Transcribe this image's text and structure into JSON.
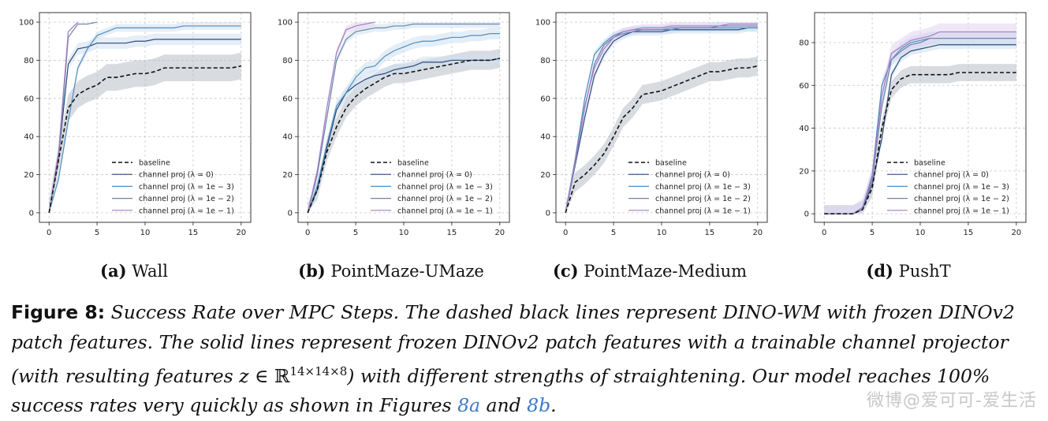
{
  "colors": {
    "baseline": "#111111",
    "lam0": "#2b4a7a",
    "lam3": "#4f8fc0",
    "lam2": "#6d86a8",
    "lam1": "#a37bc4",
    "band_baseline": "#b8bec6",
    "band_light": "#cfe0f0",
    "band_purple": "#e2d4ee",
    "grid": "#c8c8c8"
  },
  "chart_data": [
    {
      "type": "line",
      "id": "wall",
      "sub_label": "(a)",
      "sub_title": "Wall",
      "xlim": [
        -1,
        21
      ],
      "ylim": [
        -5,
        105
      ],
      "xticks": [
        0,
        5,
        10,
        15,
        20
      ],
      "yticks": [
        0,
        20,
        40,
        60,
        80,
        100
      ],
      "grid": true,
      "legend_position": "lower-right",
      "series": [
        {
          "name": "baseline",
          "style": "dashed",
          "color": "baseline",
          "band": 7,
          "x": [
            0,
            1,
            2,
            3,
            4,
            5,
            6,
            7,
            8,
            9,
            10,
            11,
            12,
            13,
            14,
            15,
            16,
            17,
            18,
            19,
            20
          ],
          "y": [
            0,
            28,
            55,
            62,
            65,
            67,
            71,
            71,
            72,
            73,
            73,
            74,
            76,
            76,
            76,
            76,
            76,
            76,
            76,
            76,
            77
          ]
        },
        {
          "name": "channel proj (λ = 0)",
          "style": "solid",
          "color": "lam0",
          "band": 3,
          "x": [
            0,
            1,
            2,
            3,
            4,
            5,
            6,
            7,
            8,
            9,
            10,
            11,
            12,
            13,
            14,
            15,
            16,
            17,
            18,
            19,
            20
          ],
          "y": [
            0,
            30,
            78,
            86,
            87,
            89,
            89,
            89,
            89,
            90,
            90,
            91,
            91,
            91,
            91,
            91,
            91,
            91,
            91,
            91,
            91
          ]
        },
        {
          "name": "channel proj (λ = 1e − 3)",
          "style": "solid",
          "color": "lam3",
          "band": 2,
          "x": [
            0,
            1,
            2,
            3,
            4,
            5,
            6,
            7,
            8,
            9,
            10,
            11,
            12,
            13,
            14,
            15,
            16,
            17,
            18,
            19,
            20
          ],
          "y": [
            0,
            18,
            48,
            76,
            86,
            93,
            95,
            97,
            97,
            97,
            97,
            97,
            97,
            97,
            98,
            98,
            98,
            98,
            98,
            98,
            98
          ]
        },
        {
          "name": "channel proj (λ = 1e − 2)",
          "style": "solid",
          "color": "lam2",
          "band": 0,
          "x": [
            0,
            1,
            2,
            3,
            4,
            5
          ],
          "y": [
            0,
            28,
            92,
            99,
            99,
            100
          ]
        },
        {
          "name": "channel proj (λ = 1e − 1)",
          "style": "solid",
          "color": "lam1",
          "band": 0,
          "x": [
            0,
            1,
            2,
            3
          ],
          "y": [
            0,
            32,
            95,
            100
          ]
        }
      ]
    },
    {
      "type": "line",
      "id": "umaze",
      "sub_label": "(b)",
      "sub_title": "PointMaze-UMaze",
      "xlim": [
        -1,
        21
      ],
      "ylim": [
        -5,
        105
      ],
      "xticks": [
        0,
        5,
        10,
        15,
        20
      ],
      "yticks": [
        0,
        20,
        40,
        60,
        80,
        100
      ],
      "grid": true,
      "legend_position": "lower-right",
      "series": [
        {
          "name": "baseline",
          "style": "dashed",
          "color": "baseline",
          "band": 5,
          "x": [
            0,
            1,
            2,
            3,
            4,
            5,
            6,
            7,
            8,
            9,
            10,
            11,
            12,
            13,
            14,
            15,
            16,
            17,
            18,
            19,
            20
          ],
          "y": [
            0,
            12,
            32,
            45,
            55,
            61,
            65,
            68,
            71,
            73,
            73,
            74,
            75,
            76,
            77,
            78,
            79,
            80,
            80,
            80,
            81
          ]
        },
        {
          "name": "channel proj (λ = 0)",
          "style": "solid",
          "color": "lam0",
          "band": 3,
          "x": [
            0,
            1,
            2,
            3,
            4,
            5,
            6,
            7,
            8,
            9,
            10,
            11,
            12,
            13,
            14,
            15,
            16,
            17,
            18,
            19,
            20
          ],
          "y": [
            0,
            12,
            34,
            54,
            63,
            67,
            70,
            72,
            73,
            75,
            76,
            77,
            79,
            79,
            79,
            80,
            80,
            80,
            80,
            80,
            81
          ]
        },
        {
          "name": "channel proj (λ = 1e − 3)",
          "style": "solid",
          "color": "lam3",
          "band": 3,
          "x": [
            0,
            1,
            2,
            3,
            4,
            5,
            6,
            7,
            8,
            9,
            10,
            11,
            12,
            13,
            14,
            15,
            16,
            17,
            18,
            19,
            20
          ],
          "y": [
            0,
            14,
            36,
            56,
            63,
            71,
            76,
            77,
            82,
            85,
            87,
            89,
            90,
            90,
            91,
            92,
            92,
            93,
            93,
            94,
            94
          ]
        },
        {
          "name": "channel proj (λ = 1e − 2)",
          "style": "solid",
          "color": "lam2",
          "band": 2,
          "x": [
            0,
            1,
            2,
            3,
            4,
            5,
            6,
            7,
            8,
            9,
            10,
            11,
            12,
            13,
            14,
            15,
            16,
            17,
            18,
            19,
            20
          ],
          "y": [
            0,
            20,
            50,
            80,
            91,
            95,
            96,
            97,
            97,
            98,
            98,
            99,
            99,
            99,
            99,
            99,
            99,
            99,
            99,
            99,
            99
          ]
        },
        {
          "name": "channel proj (λ = 1e − 1)",
          "style": "solid",
          "color": "lam1",
          "band": 2,
          "x": [
            0,
            1,
            2,
            3,
            4,
            5,
            6,
            7
          ],
          "y": [
            0,
            22,
            55,
            84,
            96,
            98,
            99,
            100
          ]
        }
      ]
    },
    {
      "type": "line",
      "id": "medium",
      "sub_label": "(c)",
      "sub_title": "PointMaze-Medium",
      "xlim": [
        -1,
        21
      ],
      "ylim": [
        -5,
        105
      ],
      "xticks": [
        0,
        5,
        10,
        15,
        20
      ],
      "yticks": [
        0,
        20,
        40,
        60,
        80,
        100
      ],
      "grid": true,
      "legend_position": "lower-right",
      "series": [
        {
          "name": "baseline",
          "style": "dashed",
          "color": "baseline",
          "band": 5,
          "x": [
            0,
            1,
            2,
            3,
            4,
            5,
            6,
            7,
            8,
            9,
            10,
            11,
            12,
            13,
            14,
            15,
            16,
            17,
            18,
            19,
            20
          ],
          "y": [
            0,
            16,
            20,
            25,
            31,
            40,
            50,
            55,
            62,
            63,
            64,
            66,
            68,
            70,
            72,
            74,
            74,
            75,
            76,
            76,
            77
          ]
        },
        {
          "name": "channel proj (λ = 0)",
          "style": "solid",
          "color": "lam0",
          "band": 2,
          "x": [
            0,
            1,
            2,
            3,
            4,
            5,
            6,
            7,
            8,
            9,
            10,
            11,
            12,
            13,
            14,
            15,
            16,
            17,
            18,
            19,
            20
          ],
          "y": [
            0,
            25,
            50,
            72,
            83,
            90,
            93,
            95,
            95,
            95,
            95,
            96,
            96,
            96,
            96,
            96,
            96,
            96,
            96,
            97,
            97
          ]
        },
        {
          "name": "channel proj (λ = 1e − 3)",
          "style": "solid",
          "color": "lam3",
          "band": 2,
          "x": [
            0,
            1,
            2,
            3,
            4,
            5,
            6,
            7,
            8,
            9,
            10,
            11,
            12,
            13,
            14,
            15,
            16,
            17,
            18,
            19,
            20
          ],
          "y": [
            0,
            28,
            60,
            83,
            89,
            93,
            95,
            96,
            96,
            96,
            96,
            96,
            97,
            97,
            97,
            97,
            97,
            97,
            97,
            97,
            97
          ]
        },
        {
          "name": "channel proj (λ = 1e − 2)",
          "style": "solid",
          "color": "lam2",
          "band": 2,
          "x": [
            0,
            1,
            2,
            3,
            4,
            5,
            6,
            7,
            8,
            9,
            10,
            11,
            12,
            13,
            14,
            15,
            16,
            17,
            18,
            19,
            20
          ],
          "y": [
            0,
            27,
            55,
            78,
            88,
            92,
            94,
            95,
            96,
            96,
            96,
            97,
            97,
            97,
            97,
            97,
            98,
            98,
            98,
            98,
            98
          ]
        },
        {
          "name": "channel proj (λ = 1e − 1)",
          "style": "solid",
          "color": "lam1",
          "band": 2,
          "x": [
            0,
            1,
            2,
            3,
            4,
            5,
            6,
            7,
            8,
            9,
            10,
            11,
            12,
            13,
            14,
            15,
            16,
            17,
            18,
            19,
            20
          ],
          "y": [
            0,
            26,
            56,
            76,
            86,
            92,
            95,
            96,
            97,
            97,
            97,
            98,
            98,
            98,
            98,
            98,
            98,
            99,
            99,
            99,
            99
          ]
        }
      ]
    },
    {
      "type": "line",
      "id": "pusht",
      "sub_label": "(d)",
      "sub_title": "PushT",
      "xlim": [
        -1,
        21
      ],
      "ylim": [
        -4,
        94
      ],
      "xticks": [
        0,
        5,
        10,
        15,
        20
      ],
      "yticks": [
        0,
        20,
        40,
        60,
        80
      ],
      "grid": true,
      "legend_position": "lower-right",
      "series": [
        {
          "name": "baseline",
          "style": "dashed",
          "color": "baseline",
          "band": 4,
          "x": [
            0,
            1,
            2,
            3,
            4,
            5,
            6,
            7,
            8,
            9,
            10,
            11,
            12,
            13,
            14,
            15,
            16,
            17,
            18,
            19,
            20
          ],
          "y": [
            0,
            0,
            0,
            0,
            2,
            12,
            40,
            58,
            63,
            65,
            65,
            65,
            65,
            65,
            66,
            66,
            66,
            66,
            66,
            66,
            66
          ]
        },
        {
          "name": "channel proj (λ = 0)",
          "style": "solid",
          "color": "lam0",
          "band": 2,
          "x": [
            0,
            1,
            2,
            3,
            4,
            5,
            6,
            7,
            8,
            9,
            10,
            11,
            12,
            13,
            14,
            15,
            16,
            17,
            18,
            19,
            20
          ],
          "y": [
            0,
            0,
            0,
            0,
            2,
            14,
            35,
            65,
            73,
            76,
            77,
            78,
            79,
            79,
            79,
            79,
            79,
            79,
            79,
            79,
            79
          ]
        },
        {
          "name": "channel proj (λ = 1e − 3)",
          "style": "solid",
          "color": "lam3",
          "band": 3,
          "x": [
            0,
            1,
            2,
            3,
            4,
            5,
            6,
            7,
            8,
            9,
            10,
            11,
            12,
            13,
            14,
            15,
            16,
            17,
            18,
            19,
            20
          ],
          "y": [
            0,
            0,
            0,
            0,
            2,
            18,
            60,
            72,
            77,
            80,
            81,
            82,
            82,
            82,
            82,
            82,
            82,
            82,
            82,
            82,
            82
          ]
        },
        {
          "name": "channel proj (λ = 1e − 2)",
          "style": "solid",
          "color": "lam2",
          "band": 3,
          "x": [
            0,
            1,
            2,
            3,
            4,
            5,
            6,
            7,
            8,
            9,
            10,
            11,
            12,
            13,
            14,
            15,
            16,
            17,
            18,
            19,
            20
          ],
          "y": [
            0,
            0,
            0,
            0,
            3,
            16,
            50,
            72,
            76,
            79,
            80,
            82,
            82,
            82,
            82,
            82,
            82,
            82,
            82,
            82,
            82
          ]
        },
        {
          "name": "channel proj (λ = 1e − 1)",
          "style": "solid",
          "color": "lam1",
          "band": 4,
          "x": [
            0,
            1,
            2,
            3,
            4,
            5,
            6,
            7,
            8,
            9,
            10,
            11,
            12,
            13,
            14,
            15,
            16,
            17,
            18,
            19,
            20
          ],
          "y": [
            0,
            0,
            0,
            0,
            3,
            18,
            55,
            75,
            78,
            81,
            82,
            83,
            85,
            85,
            85,
            85,
            85,
            85,
            85,
            85,
            85
          ]
        }
      ]
    }
  ],
  "caption": {
    "label": "Figure 8:",
    "part1": "Success Rate over MPC Steps. The dashed black lines represent DINO-WM with frozen DINOv2 patch features. The solid lines represent frozen DINOv2 patch features with a trainable channel projector (with resulting features ",
    "math_var": "z",
    "math_in": " ∈ ℝ",
    "math_sup": "14×14×8",
    "part2": ") with different strengths of straightening. Our model reaches 100% success rates very quickly as shown in Figures ",
    "ref1": "8a",
    "and": " and ",
    "ref2": "8b",
    "end": "."
  },
  "watermark": "微博@爱可可-爱生活"
}
